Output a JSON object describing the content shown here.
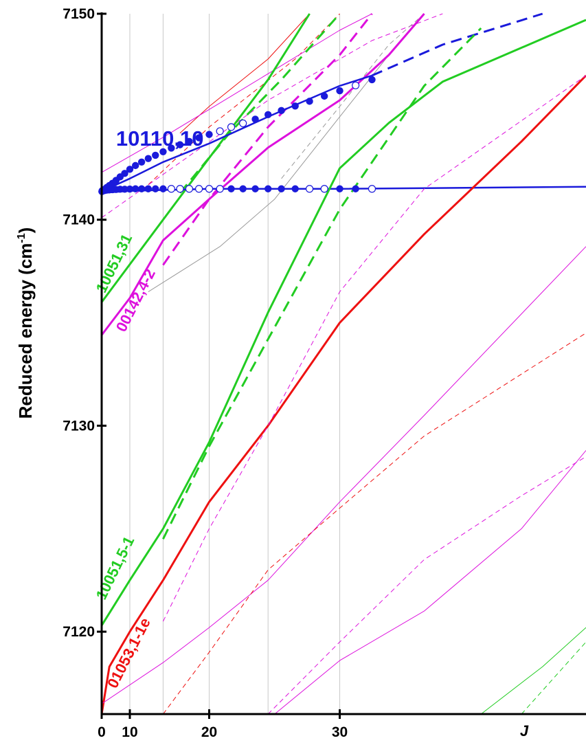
{
  "chart_data": {
    "type": "line",
    "title": "",
    "ylabel_main": "Reduced energy",
    "ylabel_unit_base": "(cm",
    "ylabel_unit_sup": "-1",
    "ylabel_unit_close": ")",
    "xlabel": "J",
    "xlim": [
      0,
      43
    ],
    "ylim": [
      7116,
      7150
    ],
    "x_scale_note": "horizontal axis is drawn in J(J+1)",
    "x_ticks": [
      {
        "value": 0,
        "label": "0"
      },
      {
        "value": 10,
        "label": "10"
      },
      {
        "value": 20,
        "label": "20"
      },
      {
        "value": 30,
        "label": "30"
      }
    ],
    "x_unlabeled_ticks": [
      15,
      25
    ],
    "y_ticks": [
      {
        "value": 7120,
        "label": "7120"
      },
      {
        "value": 7130,
        "label": "7130"
      },
      {
        "value": 7140,
        "label": "7140"
      },
      {
        "value": 7150,
        "label": "7150"
      }
    ],
    "grid": "vertical lines at J = 10, 15, 20, 25, 30",
    "series_labels": [
      {
        "text": "10110,10",
        "color": "#1a1adb",
        "x": 7,
        "y": 7143.6,
        "angle": 0,
        "size": 31
      },
      {
        "text": "10051,31",
        "color": "#22cc22",
        "x": 3,
        "y": 7136.4,
        "angle": -64,
        "size": 22
      },
      {
        "text": "00142,4-2",
        "color": "#dd11dd",
        "x": 9,
        "y": 7134.5,
        "angle": -63,
        "size": 22
      },
      {
        "text": "10051,5-1",
        "color": "#22cc22",
        "x": 3,
        "y": 7121.5,
        "angle": -64,
        "size": 22
      },
      {
        "text": "01053,1-1e",
        "color": "#ee1111",
        "x": 7,
        "y": 7117.2,
        "angle": -63,
        "size": 22
      }
    ],
    "series": [
      {
        "color": "#ee1111",
        "dashed": false,
        "width": 1,
        "points": [
          [
            17,
            7144.2
          ],
          [
            20,
            7145.5
          ],
          [
            25,
            7147.8
          ],
          [
            28,
            7150
          ]
        ]
      },
      {
        "color": "#ee1111",
        "dashed": true,
        "width": 1,
        "points": [
          [
            13,
            7141.7
          ],
          [
            20,
            7144.5
          ],
          [
            27,
            7147.8
          ],
          [
            30,
            7150
          ]
        ]
      },
      {
        "color": "#dd11dd",
        "dashed": false,
        "width": 1,
        "points": [
          [
            0,
            7142.3
          ],
          [
            15,
            7144
          ],
          [
            22,
            7146
          ],
          [
            30,
            7149.2
          ],
          [
            32,
            7150
          ]
        ]
      },
      {
        "color": "#dd11dd",
        "dashed": true,
        "width": 1,
        "points": [
          [
            0,
            7140.1
          ],
          [
            15,
            7142.2
          ],
          [
            25,
            7145.8
          ],
          [
            32,
            7148.7
          ],
          [
            36,
            7150
          ]
        ]
      },
      {
        "color": "#999999",
        "dashed": false,
        "width": 1,
        "points": [
          [
            13,
            7136.5
          ],
          [
            21,
            7138.7
          ],
          [
            25.5,
            7141
          ],
          [
            30,
            7145
          ],
          [
            33,
            7148
          ],
          [
            35,
            7150
          ]
        ]
      },
      {
        "color": "#999999",
        "dashed": true,
        "width": 1,
        "points": [
          [
            26,
            7142
          ],
          [
            30,
            7145.5
          ],
          [
            33,
            7148.5
          ],
          [
            35,
            7150
          ]
        ]
      },
      {
        "color": "#22cc22",
        "dashed": false,
        "width": 3,
        "points": [
          [
            0,
            7136
          ],
          [
            15,
            7140
          ],
          [
            20,
            7143
          ],
          [
            25,
            7146.8
          ],
          [
            28,
            7150
          ]
        ]
      },
      {
        "color": "#22cc22",
        "dashed": true,
        "width": 3,
        "points": [
          [
            17,
            7141.3
          ],
          [
            22,
            7144.3
          ],
          [
            26,
            7146.8
          ],
          [
            30,
            7150
          ]
        ]
      },
      {
        "color": "#dd11dd",
        "dashed": false,
        "width": 3,
        "points": [
          [
            0,
            7134.4
          ],
          [
            10,
            7136.2
          ],
          [
            15,
            7139
          ],
          [
            20,
            7141
          ],
          [
            25,
            7143.5
          ],
          [
            30,
            7145.8
          ],
          [
            33,
            7148
          ],
          [
            35,
            7150
          ]
        ]
      },
      {
        "color": "#dd11dd",
        "dashed": true,
        "width": 3,
        "points": [
          [
            15,
            7137.8
          ],
          [
            20,
            7141
          ],
          [
            25,
            7144.5
          ],
          [
            30,
            7148
          ],
          [
            32,
            7150
          ]
        ]
      },
      {
        "color": "#1a1adb",
        "dashed": false,
        "width": 2.5,
        "points": [
          [
            0,
            7141.3
          ],
          [
            10,
            7141.4
          ],
          [
            20,
            7141.5
          ],
          [
            30,
            7141.5
          ],
          [
            43,
            7141.6
          ]
        ]
      },
      {
        "color": "#1a1adb",
        "dashed": false,
        "width": 2.5,
        "points": [
          [
            0,
            7141.4
          ],
          [
            5,
            7141.55
          ],
          [
            10,
            7142
          ],
          [
            15,
            7142.8
          ],
          [
            20,
            7143.7
          ],
          [
            25,
            7145
          ],
          [
            30,
            7146.5
          ],
          [
            32,
            7147
          ]
        ]
      },
      {
        "color": "#1a1adb",
        "dashed": true,
        "width": 3,
        "points": [
          [
            32,
            7147
          ],
          [
            36,
            7148.5
          ],
          [
            41,
            7150
          ]
        ]
      },
      {
        "color": "#22cc22",
        "dashed": false,
        "width": 3,
        "points": [
          [
            0,
            7120.3
          ],
          [
            10,
            7122.5
          ],
          [
            15,
            7125
          ],
          [
            20,
            7129.2
          ],
          [
            25,
            7135.5
          ],
          [
            30,
            7142.5
          ],
          [
            33,
            7144.7
          ],
          [
            36,
            7146.7
          ],
          [
            43,
            7149.7
          ]
        ]
      },
      {
        "color": "#22cc22",
        "dashed": true,
        "width": 3,
        "points": [
          [
            15,
            7124.5
          ],
          [
            20,
            7129
          ],
          [
            25,
            7134.2
          ],
          [
            30,
            7140.5
          ],
          [
            35,
            7146.5
          ],
          [
            38,
            7149.3
          ]
        ]
      },
      {
        "color": "#ee1111",
        "dashed": false,
        "width": 3,
        "points": [
          [
            0,
            7116
          ],
          [
            5,
            7118.3
          ],
          [
            10,
            7120
          ],
          [
            15,
            7122.5
          ],
          [
            20,
            7126.3
          ],
          [
            25,
            7130
          ],
          [
            30,
            7135
          ],
          [
            35,
            7139.3
          ],
          [
            40,
            7143.8
          ],
          [
            43,
            7147
          ]
        ]
      },
      {
        "color": "#dd11dd",
        "dashed": true,
        "width": 1,
        "points": [
          [
            15,
            7120.5
          ],
          [
            20,
            7125
          ],
          [
            25,
            7130
          ],
          [
            30,
            7136.5
          ],
          [
            35,
            7141.5
          ],
          [
            43,
            7147
          ]
        ]
      },
      {
        "color": "#dd11dd",
        "dashed": false,
        "width": 1,
        "points": [
          [
            0,
            7116.5
          ],
          [
            15,
            7118.5
          ],
          [
            20,
            7120.2
          ],
          [
            25,
            7122.5
          ],
          [
            30,
            7126.3
          ],
          [
            35,
            7130.5
          ],
          [
            43,
            7138.7
          ]
        ]
      },
      {
        "color": "#ee1111",
        "dashed": true,
        "width": 1,
        "points": [
          [
            15,
            7116
          ],
          [
            20,
            7119
          ],
          [
            25,
            7123
          ],
          [
            30,
            7126
          ],
          [
            35,
            7129.5
          ],
          [
            43,
            7134.5
          ]
        ]
      },
      {
        "color": "#dd11dd",
        "dashed": true,
        "width": 1,
        "points": [
          [
            25,
            7116
          ],
          [
            30,
            7119.5
          ],
          [
            35,
            7123.5
          ],
          [
            40,
            7126.6
          ],
          [
            43,
            7128.5
          ]
        ]
      },
      {
        "color": "#dd11dd",
        "dashed": false,
        "width": 1,
        "points": [
          [
            25.5,
            7116
          ],
          [
            30,
            7118.6
          ],
          [
            35,
            7121
          ],
          [
            40,
            7125
          ],
          [
            43,
            7128.8
          ]
        ]
      },
      {
        "color": "#22cc22",
        "dashed": false,
        "width": 1,
        "points": [
          [
            38,
            7116
          ],
          [
            41,
            7118.3
          ],
          [
            43,
            7120.2
          ]
        ]
      },
      {
        "color": "#22cc22",
        "dashed": true,
        "width": 1,
        "points": [
          [
            40,
            7116
          ],
          [
            43,
            7119.5
          ]
        ]
      }
    ],
    "markers": [
      {
        "x": 0.5,
        "y": 7141.37,
        "filled": true
      },
      {
        "x": 1,
        "y": 7141.38,
        "filled": true
      },
      {
        "x": 2,
        "y": 7141.4,
        "filled": true
      },
      {
        "x": 3,
        "y": 7141.42,
        "filled": true
      },
      {
        "x": 4,
        "y": 7141.44,
        "filled": true
      },
      {
        "x": 5,
        "y": 7141.45,
        "filled": true
      },
      {
        "x": 6,
        "y": 7141.46,
        "filled": true
      },
      {
        "x": 7,
        "y": 7141.47,
        "filled": true
      },
      {
        "x": 8,
        "y": 7141.48,
        "filled": true
      },
      {
        "x": 9,
        "y": 7141.48,
        "filled": true
      },
      {
        "x": 10,
        "y": 7141.49,
        "filled": true
      },
      {
        "x": 11,
        "y": 7141.5,
        "filled": true
      },
      {
        "x": 12,
        "y": 7141.5,
        "filled": true
      },
      {
        "x": 13,
        "y": 7141.5,
        "filled": true
      },
      {
        "x": 14,
        "y": 7141.5,
        "filled": true
      },
      {
        "x": 15,
        "y": 7141.5,
        "filled": true
      },
      {
        "x": 16,
        "y": 7141.5,
        "filled": false
      },
      {
        "x": 17,
        "y": 7141.5,
        "filled": false
      },
      {
        "x": 18,
        "y": 7141.5,
        "filled": false
      },
      {
        "x": 19,
        "y": 7141.5,
        "filled": false
      },
      {
        "x": 20,
        "y": 7141.5,
        "filled": false
      },
      {
        "x": 21,
        "y": 7141.5,
        "filled": false
      },
      {
        "x": 22,
        "y": 7141.5,
        "filled": true
      },
      {
        "x": 23,
        "y": 7141.5,
        "filled": true
      },
      {
        "x": 24,
        "y": 7141.5,
        "filled": true
      },
      {
        "x": 25,
        "y": 7141.5,
        "filled": true
      },
      {
        "x": 26,
        "y": 7141.5,
        "filled": true
      },
      {
        "x": 27,
        "y": 7141.5,
        "filled": true
      },
      {
        "x": 28,
        "y": 7141.5,
        "filled": false
      },
      {
        "x": 29,
        "y": 7141.5,
        "filled": false
      },
      {
        "x": 30,
        "y": 7141.5,
        "filled": true
      },
      {
        "x": 31,
        "y": 7141.5,
        "filled": true
      },
      {
        "x": 32,
        "y": 7141.5,
        "filled": false
      },
      {
        "x": 1,
        "y": 7141.41,
        "filled": true
      },
      {
        "x": 2,
        "y": 7141.43,
        "filled": true
      },
      {
        "x": 3,
        "y": 7141.48,
        "filled": true
      },
      {
        "x": 4,
        "y": 7141.57,
        "filled": true
      },
      {
        "x": 5,
        "y": 7141.66,
        "filled": true
      },
      {
        "x": 6,
        "y": 7141.77,
        "filled": true
      },
      {
        "x": 7,
        "y": 7141.91,
        "filled": true
      },
      {
        "x": 8,
        "y": 7142.08,
        "filled": true
      },
      {
        "x": 9,
        "y": 7142.25,
        "filled": true
      },
      {
        "x": 10,
        "y": 7142.45,
        "filled": true
      },
      {
        "x": 11,
        "y": 7142.63,
        "filled": true
      },
      {
        "x": 12,
        "y": 7142.8,
        "filled": true
      },
      {
        "x": 13,
        "y": 7142.97,
        "filled": true
      },
      {
        "x": 14,
        "y": 7143.13,
        "filled": true
      },
      {
        "x": 15,
        "y": 7143.3,
        "filled": true
      },
      {
        "x": 16,
        "y": 7143.48,
        "filled": true
      },
      {
        "x": 17,
        "y": 7143.64,
        "filled": true
      },
      {
        "x": 18,
        "y": 7143.8,
        "filled": true
      },
      {
        "x": 19,
        "y": 7143.98,
        "filled": true
      },
      {
        "x": 20,
        "y": 7144.14,
        "filled": true
      },
      {
        "x": 21,
        "y": 7144.3,
        "filled": false
      },
      {
        "x": 22,
        "y": 7144.5,
        "filled": false
      },
      {
        "x": 23,
        "y": 7144.68,
        "filled": false
      },
      {
        "x": 24,
        "y": 7144.88,
        "filled": true
      },
      {
        "x": 25,
        "y": 7145.1,
        "filled": true
      },
      {
        "x": 26,
        "y": 7145.3,
        "filled": true
      },
      {
        "x": 27,
        "y": 7145.52,
        "filled": true
      },
      {
        "x": 28,
        "y": 7145.75,
        "filled": true
      },
      {
        "x": 29,
        "y": 7146,
        "filled": true
      },
      {
        "x": 30,
        "y": 7146.26,
        "filled": true
      },
      {
        "x": 31,
        "y": 7146.52,
        "filled": false
      },
      {
        "x": 32,
        "y": 7146.8,
        "filled": true
      }
    ]
  }
}
